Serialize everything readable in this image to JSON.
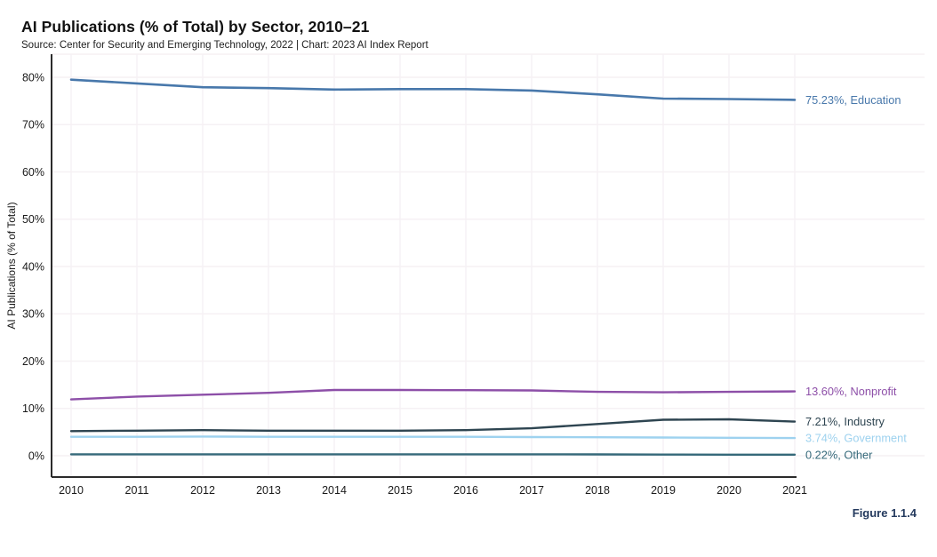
{
  "header": {
    "title": "AI Publications (% of Total) by Sector, 2010–21",
    "subtitle": "Source: Center for Security and Emerging Technology, 2022 | Chart: 2023 AI Index Report"
  },
  "figure_label": "Figure 1.1.4",
  "colors": {
    "axis_text": "#1a1a1a",
    "spine": "#2b2b2b",
    "grid": "#f6f1f4",
    "figure_label": "#243a5e"
  },
  "chart_data": {
    "type": "line",
    "title": "AI Publications (% of Total) by Sector, 2010–21",
    "xlabel": "",
    "ylabel": "AI Publications (% of Total)",
    "ylim": [
      0,
      80
    ],
    "y_ticks": [
      "0%",
      "10%",
      "20%",
      "30%",
      "40%",
      "50%",
      "60%",
      "70%",
      "80%"
    ],
    "grid": true,
    "legend_position": "right-end-labels",
    "categories": [
      "2010",
      "2011",
      "2012",
      "2013",
      "2014",
      "2015",
      "2016",
      "2017",
      "2018",
      "2019",
      "2020",
      "2021"
    ],
    "series": [
      {
        "name": "Education",
        "color": "#4878ab",
        "end_label": "75.23%, Education",
        "values": [
          79.5,
          78.7,
          77.9,
          77.7,
          77.4,
          77.5,
          77.5,
          77.2,
          76.4,
          75.5,
          75.4,
          75.23
        ]
      },
      {
        "name": "Nonprofit",
        "color": "#8d4fa8",
        "end_label": "13.60%, Nonprofit",
        "values": [
          11.9,
          12.5,
          12.9,
          13.3,
          13.9,
          13.9,
          13.85,
          13.8,
          13.5,
          13.4,
          13.5,
          13.6
        ]
      },
      {
        "name": "Industry",
        "color": "#2e4551",
        "end_label": "7.21%, Industry",
        "values": [
          5.2,
          5.3,
          5.4,
          5.3,
          5.3,
          5.3,
          5.4,
          5.8,
          6.7,
          7.6,
          7.7,
          7.21
        ]
      },
      {
        "name": "Government",
        "color": "#9ed2ef",
        "end_label": "3.74%, Government",
        "values": [
          4.0,
          4.0,
          4.05,
          4.0,
          4.0,
          4.0,
          4.0,
          3.95,
          3.9,
          3.85,
          3.8,
          3.74
        ]
      },
      {
        "name": "Other",
        "color": "#35697a",
        "end_label": "0.22%, Other",
        "values": [
          0.3,
          0.3,
          0.3,
          0.3,
          0.3,
          0.3,
          0.3,
          0.3,
          0.28,
          0.25,
          0.23,
          0.22
        ]
      }
    ]
  }
}
